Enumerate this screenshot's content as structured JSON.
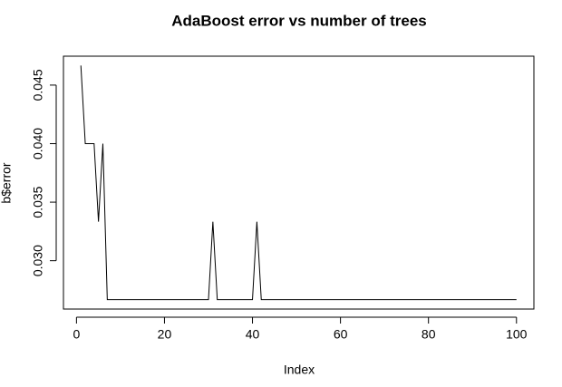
{
  "chart_data": {
    "type": "line",
    "title": "AdaBoost error vs number of trees",
    "x_label": "Index",
    "y_label": "b$error",
    "color": "#000000",
    "x": [
      1,
      2,
      3,
      4,
      5,
      6,
      7,
      8,
      9,
      10,
      11,
      12,
      13,
      14,
      15,
      16,
      17,
      18,
      19,
      20,
      21,
      22,
      23,
      24,
      25,
      26,
      27,
      28,
      29,
      30,
      31,
      32,
      33,
      34,
      35,
      36,
      37,
      38,
      39,
      40,
      41,
      42,
      43,
      44,
      45,
      46,
      47,
      48,
      49,
      50,
      51,
      52,
      53,
      54,
      55,
      56,
      57,
      58,
      59,
      60,
      61,
      62,
      63,
      64,
      65,
      66,
      67,
      68,
      69,
      70,
      71,
      72,
      73,
      74,
      75,
      76,
      77,
      78,
      79,
      80,
      81,
      82,
      83,
      84,
      85,
      86,
      87,
      88,
      89,
      90,
      91,
      92,
      93,
      94,
      95,
      96,
      97,
      98,
      99,
      100
    ],
    "values": [
      0.04667,
      0.04,
      0.04,
      0.04,
      0.03333,
      0.04,
      0.02667,
      0.02667,
      0.02667,
      0.02667,
      0.02667,
      0.02667,
      0.02667,
      0.02667,
      0.02667,
      0.02667,
      0.02667,
      0.02667,
      0.02667,
      0.02667,
      0.02667,
      0.02667,
      0.02667,
      0.02667,
      0.02667,
      0.02667,
      0.02667,
      0.02667,
      0.02667,
      0.02667,
      0.03333,
      0.02667,
      0.02667,
      0.02667,
      0.02667,
      0.02667,
      0.02667,
      0.02667,
      0.02667,
      0.02667,
      0.03333,
      0.02667,
      0.02667,
      0.02667,
      0.02667,
      0.02667,
      0.02667,
      0.02667,
      0.02667,
      0.02667,
      0.02667,
      0.02667,
      0.02667,
      0.02667,
      0.02667,
      0.02667,
      0.02667,
      0.02667,
      0.02667,
      0.02667,
      0.02667,
      0.02667,
      0.02667,
      0.02667,
      0.02667,
      0.02667,
      0.02667,
      0.02667,
      0.02667,
      0.02667,
      0.02667,
      0.02667,
      0.02667,
      0.02667,
      0.02667,
      0.02667,
      0.02667,
      0.02667,
      0.02667,
      0.02667,
      0.02667,
      0.02667,
      0.02667,
      0.02667,
      0.02667,
      0.02667,
      0.02667,
      0.02667,
      0.02667,
      0.02667,
      0.02667,
      0.02667,
      0.02667,
      0.02667,
      0.02667,
      0.02667,
      0.02667,
      0.02667,
      0.02667,
      0.02667
    ],
    "xlim": [
      -2.96,
      103.96
    ],
    "ylim": [
      0.02587,
      0.04747
    ],
    "xticks": [
      0,
      20,
      40,
      60,
      80,
      100
    ],
    "yticks": [
      {
        "value": 0.03,
        "label": "0.030"
      },
      0.035,
      {
        "value": 0.04,
        "label": "0.040"
      },
      0.045
    ]
  }
}
